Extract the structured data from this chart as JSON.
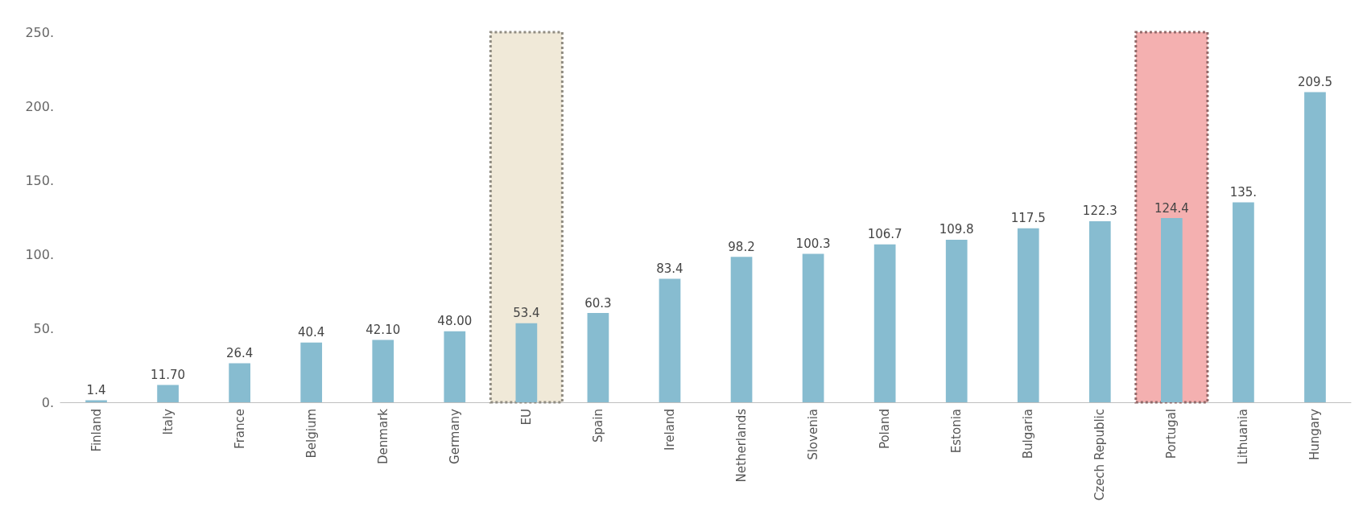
{
  "chart_data": {
    "type": "bar",
    "categories": [
      "Finland",
      "Italy",
      "France",
      "Belgium",
      "Denmark",
      "Germany",
      "EU",
      "Spain",
      "Ireland",
      "Netherlands",
      "Slovenia",
      "Poland",
      "Estonia",
      "Bulgaria",
      "Czech Republic",
      "Portugal",
      "Lithuania",
      "Hungary"
    ],
    "values": [
      1.4,
      11.7,
      26.4,
      40.4,
      42.1,
      48.0,
      53.4,
      60.3,
      83.4,
      98.2,
      100.3,
      106.7,
      109.8,
      117.5,
      122.3,
      124.4,
      135.0,
      209.5
    ],
    "value_labels": [
      "1.4",
      "11.70",
      "26.4",
      "40.4",
      "42.10",
      "48.00",
      "53.4",
      "60.3",
      "83.4",
      "98.2",
      "100.3",
      "106.7",
      "109.8",
      "117.5",
      "122.3",
      "124.4",
      "135.",
      "209.5"
    ],
    "color": "#87bcd0",
    "ylim": [
      0,
      250
    ],
    "yticks": [
      {
        "value": 0,
        "label": "0."
      },
      {
        "value": 50,
        "label": "50."
      },
      {
        "value": 100,
        "label": "100."
      },
      {
        "value": 150,
        "label": "150."
      },
      {
        "value": 200,
        "label": "200."
      },
      {
        "value": 250,
        "label": "250."
      }
    ],
    "bands": [
      {
        "axis": "x",
        "from": "EU",
        "to": "EU",
        "color": "#f0e9d8"
      },
      {
        "axis": "x",
        "from": "Portugal",
        "to": "Portugal",
        "color": "#f4b0b0"
      }
    ],
    "grid": false
  }
}
